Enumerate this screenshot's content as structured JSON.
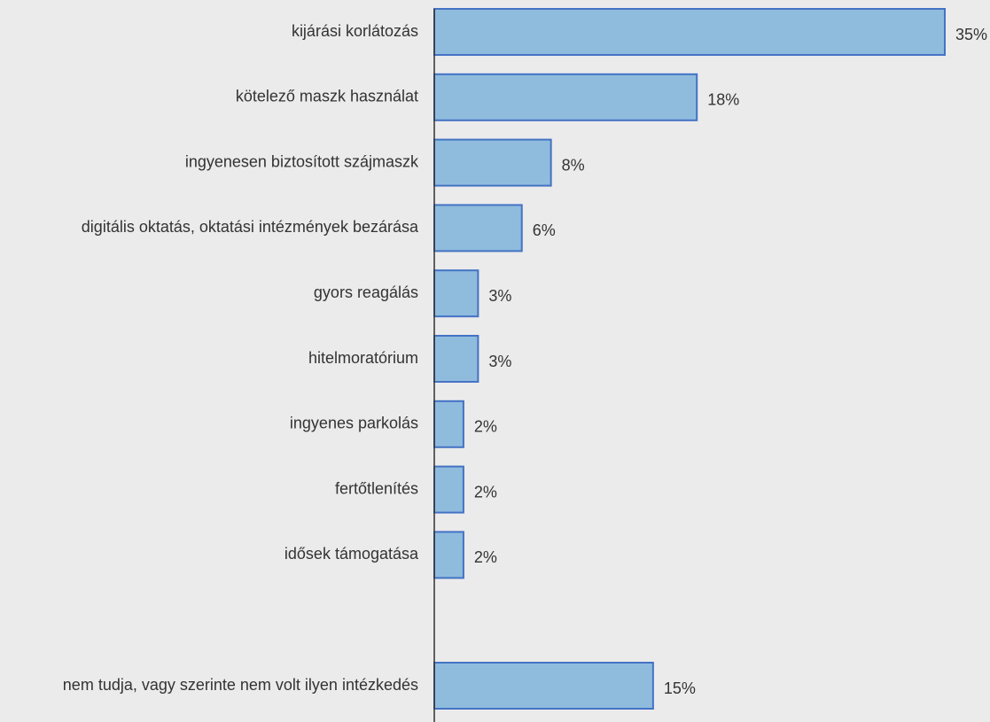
{
  "chart_data": {
    "type": "bar",
    "orientation": "horizontal",
    "categories": [
      "kijárási korlátozás",
      "kötelező maszk használat",
      "ingyenesen biztosított szájmaszk",
      "digitális oktatás, oktatási intézmények bezárása",
      "gyors reagálás",
      "hitelmoratórium",
      "ingyenes parkolás",
      "fertőtlenítés",
      "idősek támogatása",
      null,
      "nem tudja, vagy szerinte nem volt ilyen intézkedés"
    ],
    "values": [
      35,
      18,
      8,
      6,
      3,
      3,
      2,
      2,
      2,
      null,
      15
    ],
    "value_labels": [
      "35%",
      "18%",
      "8%",
      "6%",
      "3%",
      "3%",
      "2%",
      "2%",
      "2%",
      null,
      "15%"
    ],
    "color": "#8fbcdc",
    "edge_color": "#4472c4"
  }
}
